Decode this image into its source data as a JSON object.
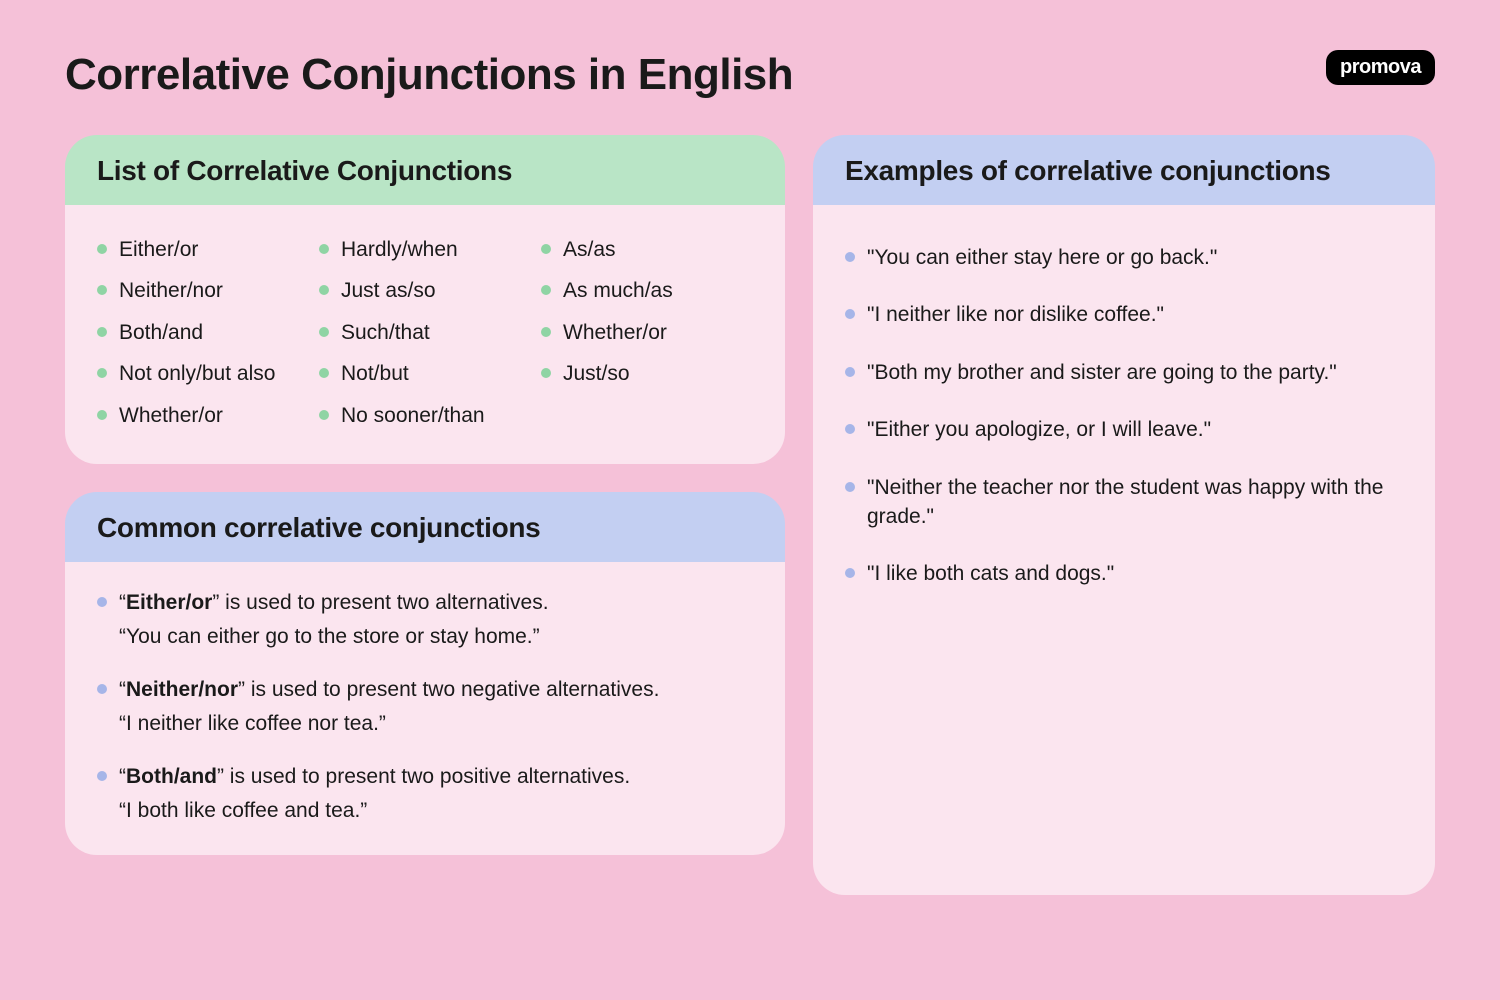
{
  "title": "Correlative Conjunctions in English",
  "logo": "promova",
  "colors": {
    "page_bg": "#f5c1d8",
    "card_bg": "#fbe5ef",
    "header_green": "#b9e5c6",
    "header_blue": "#c3cff2",
    "bullet_green": "#8fd4a4",
    "bullet_blue": "#a6b5e8",
    "text": "#1a1a1a"
  },
  "list_card": {
    "title": "List of Correlative Conjunctions",
    "items_col1": [
      "Either/or",
      "Neither/nor",
      "Both/and",
      "Not only/but also",
      "Whether/or"
    ],
    "items_col2": [
      "Hardly/when",
      "Just as/so",
      "Such/that",
      "Not/but",
      "No sooner/than"
    ],
    "items_col3": [
      "As/as",
      "As much/as",
      "Whether/or",
      "Just/so"
    ]
  },
  "common_card": {
    "title": "Common correlative conjunctions",
    "entries": [
      {
        "term": "Either/or",
        "desc": " is used to present two alternatives.",
        "example": "“You can either go to the store or stay home.”"
      },
      {
        "term": "Neither/nor",
        "desc": " is used to present two negative alternatives.",
        "example": "“I neither like coffee nor tea.”"
      },
      {
        "term": "Both/and",
        "desc": " is used to present two positive alternatives.",
        "example": "“I both like coffee and tea.”"
      }
    ]
  },
  "examples_card": {
    "title": "Examples of correlative conjunctions",
    "items": [
      "\"You can either stay here or go back.\"",
      "\"I neither like nor dislike coffee.\"",
      "\"Both my brother and sister are going to the party.\"",
      "\"Either you apologize, or I will leave.\"",
      "\"Neither the teacher nor the student was happy with the grade.\"",
      "\"I like both cats and dogs.\""
    ]
  }
}
